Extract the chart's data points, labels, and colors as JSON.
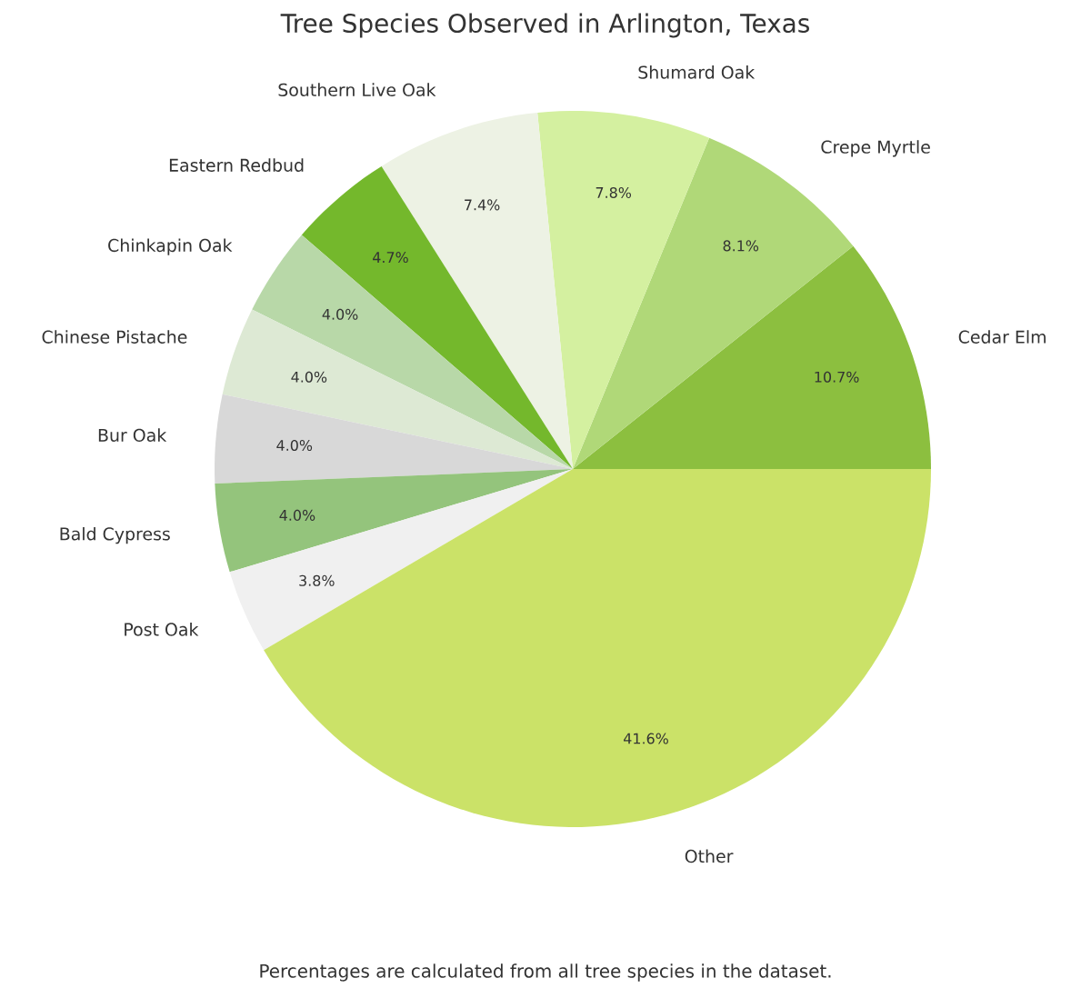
{
  "chart_data": {
    "type": "pie",
    "title": "Tree Species Observed in Arlington, Texas",
    "categories": [
      "Cedar Elm",
      "Crepe Myrtle",
      "Shumard Oak",
      "Southern Live Oak",
      "Eastern Redbud",
      "Chinkapin Oak",
      "Chinese Pistache",
      "Bur Oak",
      "Bald Cypress",
      "Post Oak",
      "Other"
    ],
    "values": [
      10.7,
      8.1,
      7.8,
      7.4,
      4.7,
      4.0,
      4.0,
      4.0,
      4.0,
      3.8,
      41.6
    ],
    "value_labels": [
      "10.7%",
      "8.1%",
      "7.8%",
      "7.4%",
      "4.7%",
      "4.0%",
      "4.0%",
      "4.0%",
      "4.0%",
      "3.8%",
      "41.6%"
    ],
    "colors": [
      "#8cbf3f",
      "#b0d878",
      "#d4f0a0",
      "#edf2e4",
      "#74b82c",
      "#b8d8a8",
      "#dde9d4",
      "#d8d8d8",
      "#94c47c",
      "#f0f0f0",
      "#cbe268"
    ],
    "annotations": [
      "Percentages are calculated from all tree species in the dataset."
    ]
  }
}
